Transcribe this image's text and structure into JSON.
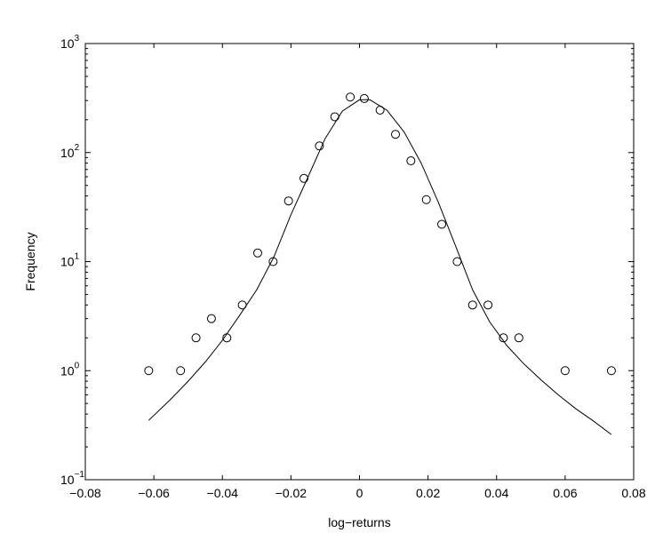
{
  "chart_data": {
    "type": "scatter",
    "title": "",
    "xlabel": "log−returns",
    "ylabel": "Frequency",
    "xlim": [
      -0.08,
      0.08
    ],
    "ylim": [
      0.1,
      1000
    ],
    "yscale": "log",
    "grid": false,
    "x_ticks": [
      "−0.08",
      "−0.06",
      "−0.04",
      "−0.02",
      "0",
      "0.02",
      "0.04",
      "0.06",
      "0.08"
    ],
    "x_tick_values": [
      -0.08,
      -0.06,
      -0.04,
      -0.02,
      0,
      0.02,
      0.04,
      0.06,
      0.08
    ],
    "y_ticks": [
      {
        "base": "10",
        "exp": "−1",
        "value": 0.1
      },
      {
        "base": "10",
        "exp": "0",
        "value": 1
      },
      {
        "base": "10",
        "exp": "1",
        "value": 10
      },
      {
        "base": "10",
        "exp": "2",
        "value": 100
      },
      {
        "base": "10",
        "exp": "3",
        "value": 1000
      }
    ],
    "series": [
      {
        "marker": "open-circle",
        "x": [
          -0.0615,
          -0.0522,
          -0.0477,
          -0.0432,
          -0.0387,
          -0.0342,
          -0.0297,
          -0.0252,
          -0.0207,
          -0.0162,
          -0.0117,
          -0.0072,
          -0.0027,
          0.0014,
          0.006,
          0.0105,
          0.015,
          0.0195,
          0.024,
          0.0285,
          0.033,
          0.0375,
          0.042,
          0.0465,
          0.06,
          0.0735
        ],
        "y": [
          1,
          1,
          2,
          3,
          2,
          4,
          12,
          10,
          36,
          58,
          115,
          213,
          323,
          313,
          245,
          147,
          84,
          37,
          22,
          10,
          4,
          4,
          2,
          2,
          1,
          1
        ]
      },
      {
        "marker": "line",
        "x": [
          -0.0615,
          -0.055,
          -0.05,
          -0.045,
          -0.04,
          -0.035,
          -0.03,
          -0.025,
          -0.02,
          -0.015,
          -0.01,
          -0.005,
          0.0,
          0.003,
          0.008,
          0.013,
          0.018,
          0.023,
          0.028,
          0.033,
          0.038,
          0.043,
          0.048,
          0.053,
          0.058,
          0.063,
          0.068,
          0.0735
        ],
        "y": [
          0.35,
          0.55,
          0.8,
          1.2,
          1.9,
          3.2,
          5.5,
          11,
          27,
          60,
          135,
          240,
          305,
          305,
          245,
          155,
          80,
          35,
          14,
          5.5,
          2.8,
          1.7,
          1.15,
          0.82,
          0.6,
          0.45,
          0.35,
          0.26
        ]
      }
    ]
  }
}
